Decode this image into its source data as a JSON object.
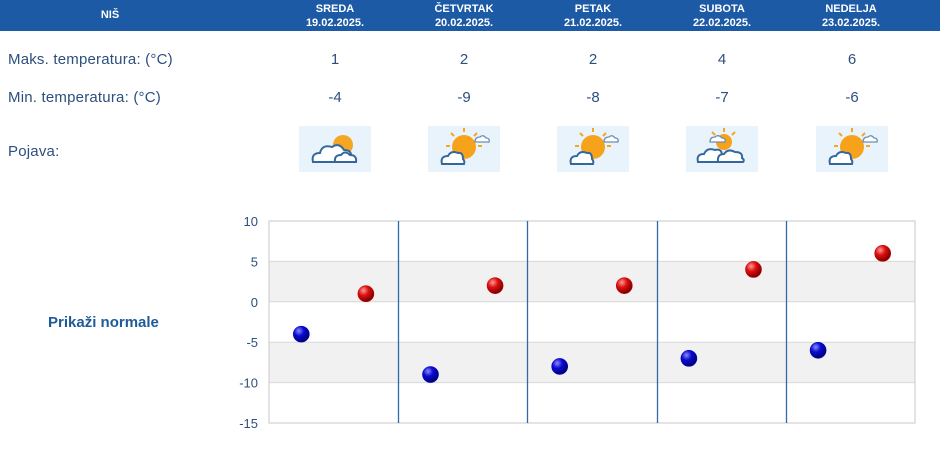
{
  "header": {
    "city": "NIŠ",
    "days": [
      {
        "name": "SREDA",
        "date": "19.02.2025."
      },
      {
        "name": "ČETVRTAK",
        "date": "20.02.2025."
      },
      {
        "name": "PETAK",
        "date": "21.02.2025."
      },
      {
        "name": "SUBOTA",
        "date": "22.02.2025."
      },
      {
        "name": "NEDELJA",
        "date": "23.02.2025."
      }
    ]
  },
  "rows": {
    "max_label": "Maks. temperatura: (°C)",
    "min_label": "Min. temperatura: (°C)",
    "icon_label": "Pojava:",
    "max_values": [
      "1",
      "2",
      "2",
      "4",
      "6"
    ],
    "min_values": [
      "-4",
      "-9",
      "-8",
      "-7",
      "-6"
    ]
  },
  "icons": [
    "cloudy-sun-icon",
    "sun-cloud-icon",
    "sun-cloud-icon",
    "partly-cloudy-icon",
    "sun-cloud-icon"
  ],
  "normals_link": "Prikaži normale",
  "colors": {
    "header_bg": "#1c5aa6",
    "max_point": "#cc0000",
    "min_point": "#0000cc",
    "text": "#2d4f7e"
  },
  "chart_data": {
    "type": "scatter",
    "categories": [
      "19.02.2025.",
      "20.02.2025.",
      "21.02.2025.",
      "22.02.2025.",
      "23.02.2025."
    ],
    "series": [
      {
        "values": [
          -4,
          -9,
          -8,
          -7,
          -6
        ],
        "color": "#0000cc"
      },
      {
        "values": [
          1,
          2,
          2,
          4,
          6
        ],
        "color": "#cc0000"
      }
    ],
    "ylim": [
      -15,
      10
    ],
    "yticks": [
      "10",
      "5",
      "0",
      "-5",
      "-10",
      "-15"
    ],
    "grid": true
  }
}
